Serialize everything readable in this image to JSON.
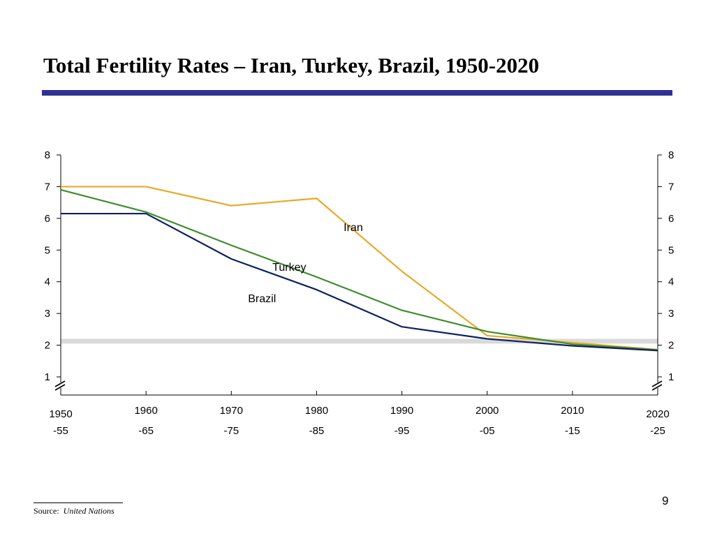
{
  "slide": {
    "title": "Total Fertility Rates – Iran, Turkey, Brazil, 1950-2020",
    "page_number": "9",
    "source_prefix": "Source:",
    "source_name": "United Nations"
  },
  "colors": {
    "title_rule": "#2e3192",
    "iran": "#e8a929",
    "turkey": "#3f8c2e",
    "brazil": "#0d2260",
    "replacement_band": "#d9d9d9"
  },
  "chart_data": {
    "type": "line",
    "x": [
      "1950-55",
      "1960-65",
      "1970-75",
      "1980-85",
      "1990-95",
      "2000-05",
      "2010-15",
      "2020-25"
    ],
    "xtick_labels": [
      {
        "top": "1950",
        "bottom": "-55"
      },
      {
        "top": "1960",
        "bottom": "-65"
      },
      {
        "top": "1970",
        "bottom": "-75"
      },
      {
        "top": "1980",
        "bottom": "-85"
      },
      {
        "top": "1990",
        "bottom": "-95"
      },
      {
        "top": "2000",
        "bottom": "-05"
      },
      {
        "top": "2010",
        "bottom": "-15"
      },
      {
        "top": "2020",
        "bottom": "-25"
      }
    ],
    "yticks": [
      1,
      2,
      3,
      4,
      5,
      6,
      7,
      8
    ],
    "ylim": [
      1,
      8
    ],
    "y_axis_both_sides": true,
    "axis_break": true,
    "replacement_band": [
      2.05,
      2.2
    ],
    "series": [
      {
        "name": "Iran",
        "values": [
          7.0,
          7.0,
          6.4,
          6.63,
          4.33,
          2.3,
          2.08,
          1.86
        ]
      },
      {
        "name": "Turkey",
        "values": [
          6.9,
          6.2,
          5.15,
          4.15,
          3.1,
          2.43,
          2.03,
          1.85
        ]
      },
      {
        "name": "Brazil",
        "values": [
          6.15,
          6.15,
          4.72,
          3.75,
          2.58,
          2.2,
          1.98,
          1.83
        ]
      }
    ],
    "grid": false,
    "legend": "inline labels"
  }
}
